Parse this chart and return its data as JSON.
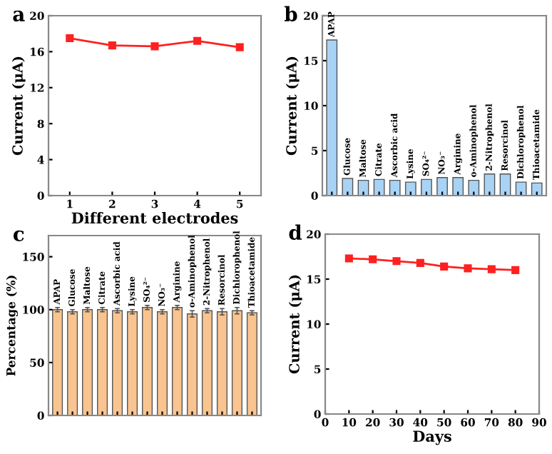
{
  "chart_data": [
    {
      "type": "line",
      "annotations": [
        "a"
      ],
      "xlabel": "Different electrodes",
      "ylabel": "Current (μA)",
      "x": [
        1,
        2,
        3,
        4,
        5
      ],
      "marker": "square",
      "series": [
        {
          "color": "#ff2020",
          "values": [
            17.5,
            16.7,
            16.6,
            17.2,
            16.5
          ]
        }
      ],
      "xlim": [
        0.5,
        5.5
      ],
      "xticks": [
        1,
        2,
        3,
        4,
        5
      ],
      "ylim": [
        0,
        20
      ],
      "yticks": [
        0,
        4,
        8,
        12,
        16,
        20
      ]
    },
    {
      "type": "bar",
      "annotations": [
        "b"
      ],
      "ylabel": "Current (μA)",
      "tick_labels": "y",
      "categories": [
        "APAP",
        "Glucose",
        "Maltose",
        "Citrate",
        "Ascorbic acid",
        "Lysine",
        "SO₄²⁻",
        "NO₃⁻",
        "Arginine",
        "o-Aminophenol",
        "2-Nitrophenol",
        "Resorcinol",
        "Dichlorophenol",
        "Thioacetamide"
      ],
      "series": [
        {
          "color": "#a9d3f5",
          "values": [
            17.3,
            1.9,
            1.7,
            1.8,
            1.7,
            1.5,
            1.8,
            2.0,
            2.0,
            1.7,
            2.4,
            2.4,
            1.5,
            1.4
          ]
        }
      ],
      "ylim": [
        0,
        20
      ],
      "yticks": [
        0,
        5,
        10,
        15,
        20
      ]
    },
    {
      "type": "bar",
      "annotations": [
        "c"
      ],
      "ylabel": "Percentage (%)",
      "tick_labels": "y",
      "categories": [
        "APAP",
        "Glucose",
        "Maltose",
        "Citrate",
        "Ascorbic acid",
        "Lysine",
        "SO₄²⁻",
        "NO₃⁻",
        "Arginine",
        "o-Aminophenol",
        "2-Nitrophenol",
        "Resorcinol",
        "Dichlorophenol",
        "Thioacetamide"
      ],
      "series": [
        {
          "color": "#f9c48f",
          "values": [
            100,
            98,
            100,
            100,
            99,
            98,
            102,
            98,
            102,
            96,
            99,
            98,
            99,
            97
          ],
          "errors": [
            2,
            2,
            2,
            2,
            2,
            2,
            2,
            2,
            2,
            3,
            2,
            3,
            3,
            2
          ]
        }
      ],
      "ylim": [
        0,
        170
      ],
      "yticks": [
        0,
        50,
        100,
        150
      ]
    },
    {
      "type": "line",
      "annotations": [
        "d"
      ],
      "xlabel": "Days",
      "ylabel": "Current (μA)",
      "x": [
        10,
        20,
        30,
        40,
        50,
        60,
        70,
        80
      ],
      "marker": "square",
      "series": [
        {
          "color": "#ff2020",
          "values": [
            17.3,
            17.2,
            17.0,
            16.8,
            16.4,
            16.2,
            16.1,
            16.0
          ]
        }
      ],
      "xlim": [
        0,
        90
      ],
      "xticks": [
        0,
        10,
        20,
        30,
        40,
        50,
        60,
        70,
        80,
        90
      ],
      "ylim": [
        0,
        20
      ],
      "yticks": [
        0,
        5,
        10,
        15,
        20
      ]
    }
  ]
}
